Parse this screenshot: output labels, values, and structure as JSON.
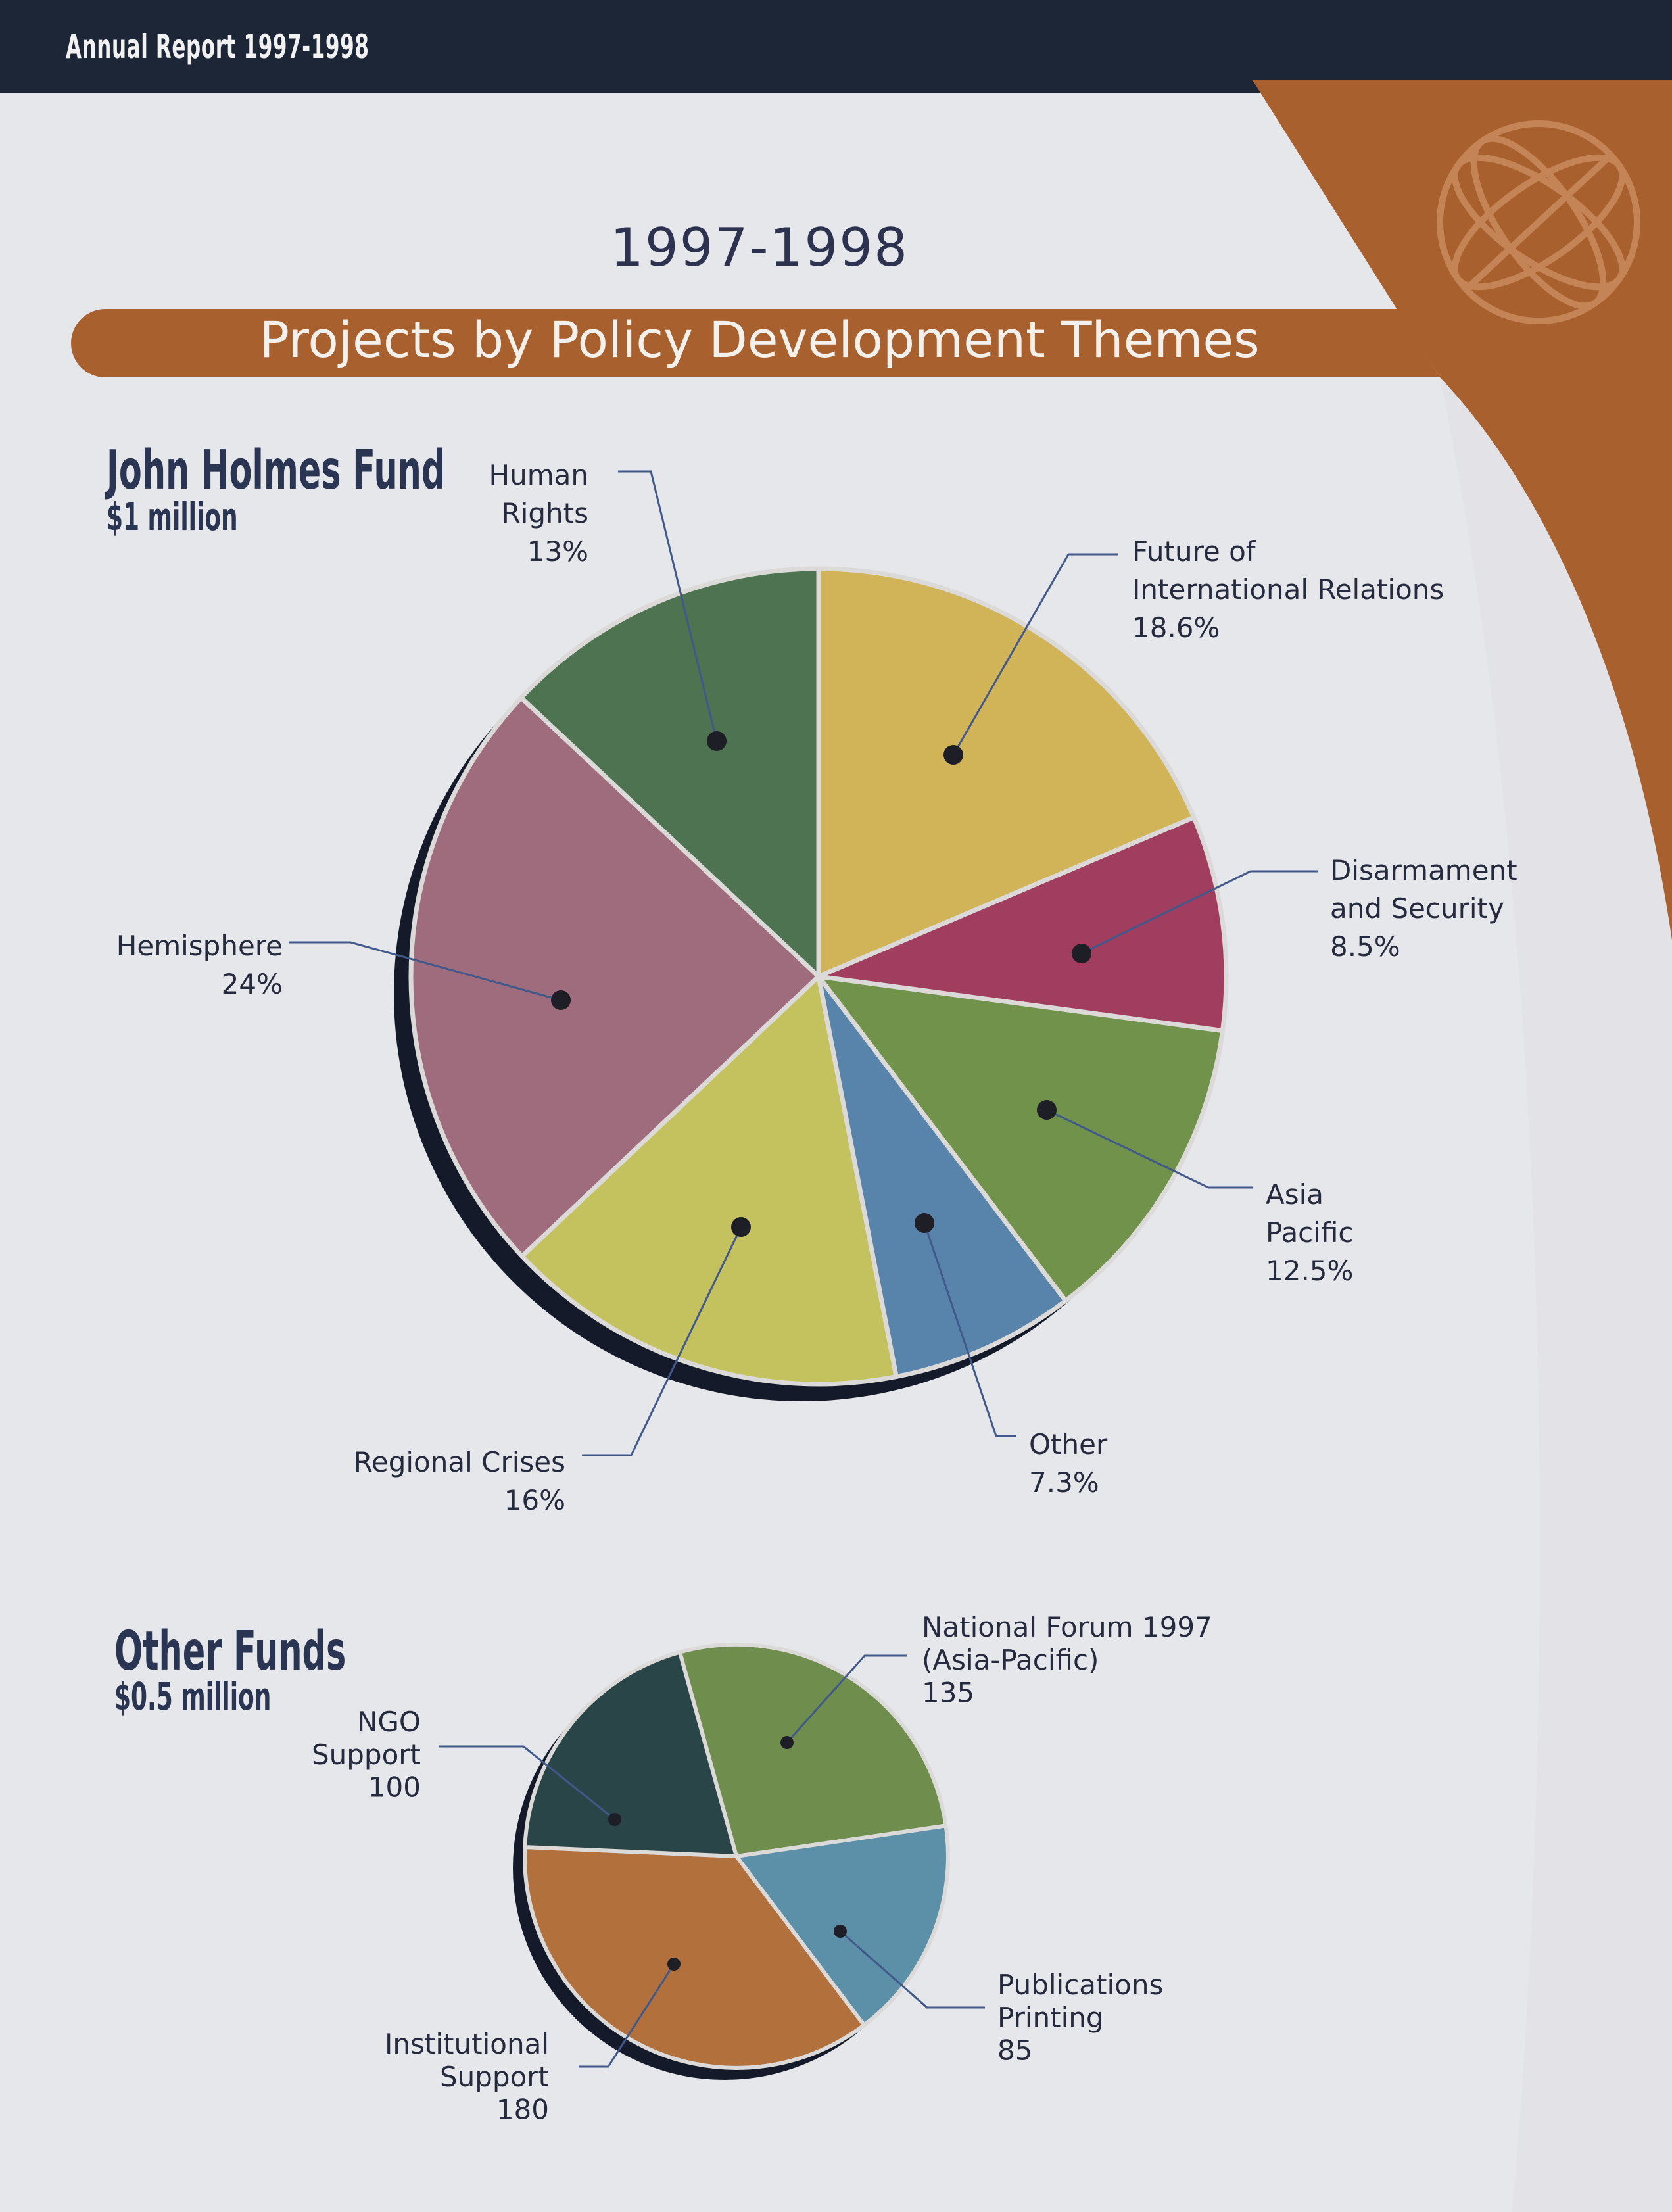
{
  "header": {
    "report_label": "Annual Report 1997-1998"
  },
  "year": "1997-1998",
  "title": "Projects by Policy Development Themes",
  "colors": {
    "brand_brown": "#a8612e",
    "navy": "#1c2637",
    "label_line": "#41588a"
  },
  "icons": [
    "globe-icon"
  ],
  "funds": [
    {
      "name": "John Holmes Fund",
      "amount": "$1 million"
    },
    {
      "name": "Other Funds",
      "amount": "$0.5 million"
    }
  ],
  "chart_data": [
    {
      "type": "pie",
      "title": "John Holmes Fund",
      "subtitle": "$1 million",
      "slices": [
        {
          "name": "Future of International Relations",
          "value": 18.6,
          "value_label": "18.6%",
          "label_lines": [
            "Future of",
            "International Relations",
            "18.6%"
          ],
          "color": "#d1b358"
        },
        {
          "name": "Disarmament and Security",
          "value": 8.5,
          "value_label": "8.5%",
          "label_lines": [
            "Disarmament",
            "and Security",
            "8.5%"
          ],
          "color": "#a13d5f"
        },
        {
          "name": "Asia Pacific",
          "value": 12.5,
          "value_label": "12.5%",
          "label_lines": [
            "Asia",
            "Pacific",
            "12.5%"
          ],
          "color": "#71924b"
        },
        {
          "name": "Other",
          "value": 7.3,
          "value_label": "7.3%",
          "label_lines": [
            "Other",
            "7.3%"
          ],
          "color": "#5884ac"
        },
        {
          "name": "Regional Crises",
          "value": 16,
          "value_label": "16%",
          "label_lines": [
            "Regional Crises",
            "16%"
          ],
          "color": "#c4c25e"
        },
        {
          "name": "Hemisphere",
          "value": 24,
          "value_label": "24%",
          "label_lines": [
            "Hemisphere",
            "24%"
          ],
          "color": "#9f6c7e"
        },
        {
          "name": "Human Rights",
          "value": 13,
          "value_label": "13%",
          "label_lines": [
            "Human",
            "Rights",
            "13%"
          ],
          "color": "#4d7350"
        }
      ]
    },
    {
      "type": "pie",
      "title": "Other Funds",
      "subtitle": "$0.5 million",
      "slices": [
        {
          "name": "National Forum 1997 (Asia-Pacific)",
          "value": 135,
          "value_label": "135",
          "label_lines": [
            "National Forum 1997",
            "(Asia-Pacific)",
            "135"
          ],
          "color": "#6f8d4d"
        },
        {
          "name": "Publications Printing",
          "value": 85,
          "value_label": "85",
          "label_lines": [
            "Publications",
            "Printing",
            "85"
          ],
          "color": "#5b90a8"
        },
        {
          "name": "Institutional Support",
          "value": 180,
          "value_label": "180",
          "label_lines": [
            "Institutional",
            "Support",
            "180"
          ],
          "color": "#b2703d"
        },
        {
          "name": "NGO Support",
          "value": 100,
          "value_label": "100",
          "label_lines": [
            "NGO",
            "Support",
            "100"
          ],
          "color": "#2a4547"
        }
      ]
    }
  ]
}
